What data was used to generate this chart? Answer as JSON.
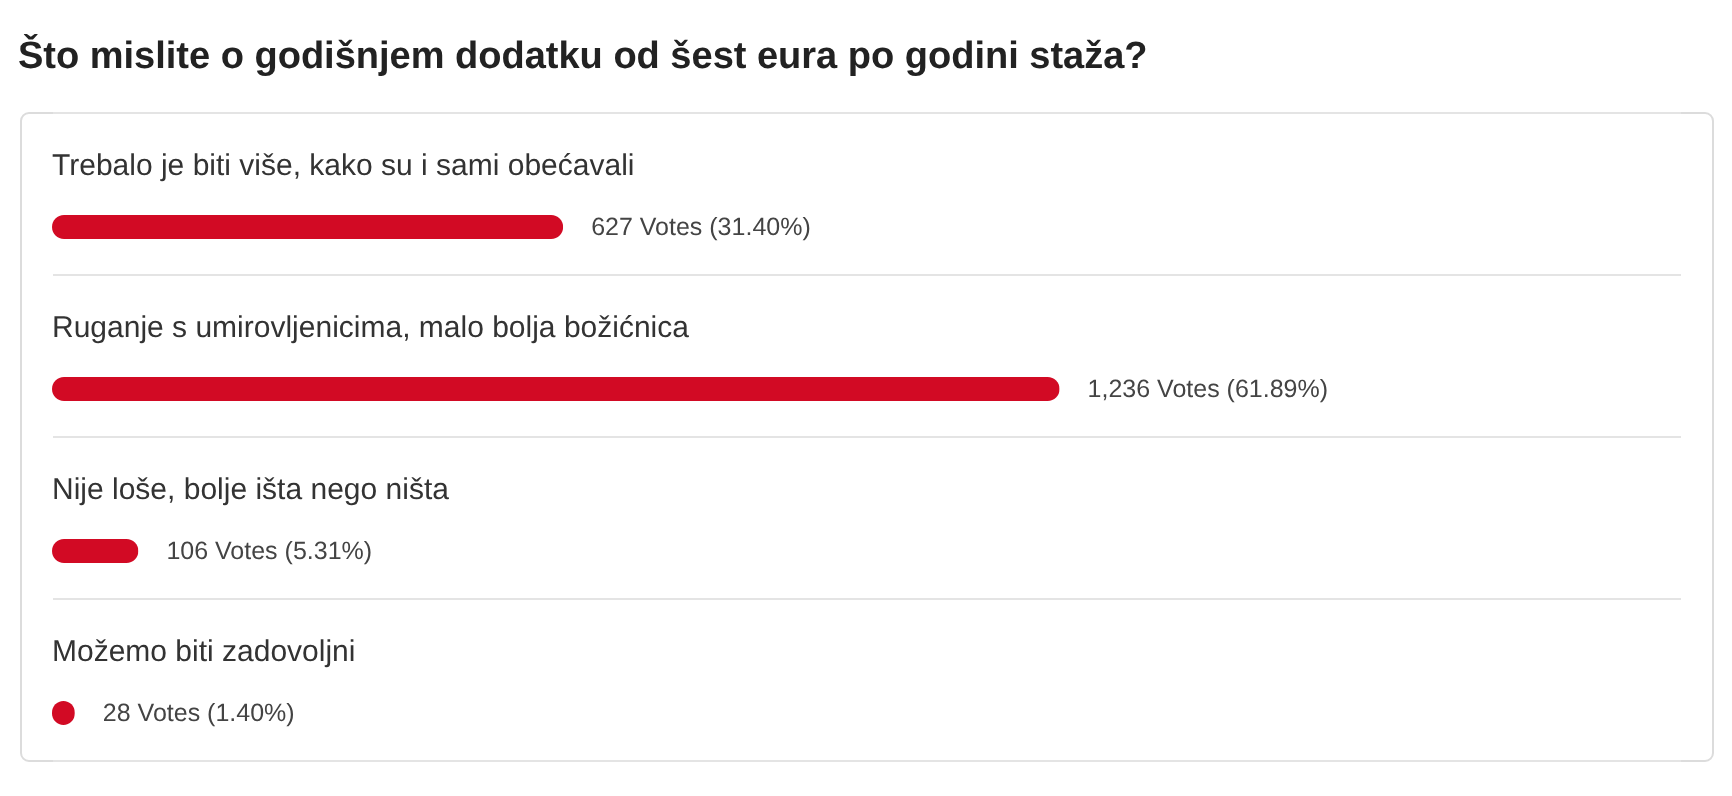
{
  "chart_data": {
    "type": "bar",
    "orientation": "horizontal",
    "title": "Što mislite o godišnjem dodatku od šest eura po godini staža?",
    "categories": [
      "Trebalo je biti više, kako su i sami obećavali",
      "Ruganje s umirovljenicima, malo bolja božićnica",
      "Nije loše, bolje išta nego ništa",
      "Možemo biti zadovoljni"
    ],
    "values": [
      627,
      1236,
      106,
      28
    ],
    "value_labels": [
      "627 Votes (31.40%)",
      "1,236 Votes (61.89%)",
      "106 Votes (5.31%)",
      "28 Votes (1.40%)"
    ],
    "color": "#d20a24",
    "grid": "y"
  }
}
